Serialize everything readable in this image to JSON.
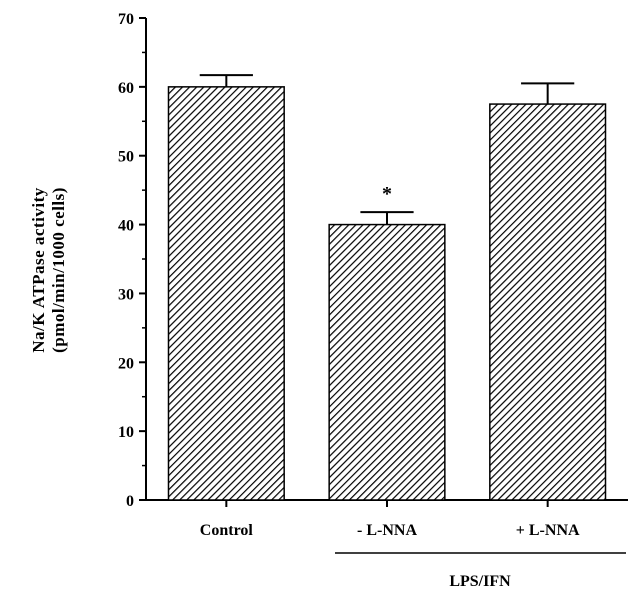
{
  "chart_data": {
    "type": "bar",
    "categories": [
      "Control",
      "- L-NNA",
      "+ L-NNA"
    ],
    "values": [
      60,
      40,
      57.5
    ],
    "errors": [
      1.7,
      1.8,
      3.0
    ],
    "ylabel_line1": "Na/K ATPase activity",
    "ylabel_line2": "(pmol/min/1000 cells)",
    "ylim": [
      0,
      70
    ],
    "yticks": [
      "0",
      "10",
      "20",
      "30",
      "40",
      "50",
      "60",
      "70"
    ],
    "group_label": "LPS/IFN",
    "annotations": [
      {
        "category": "- L-NNA",
        "text": "*"
      }
    ],
    "bar_fill": "hatched",
    "grid": false
  }
}
